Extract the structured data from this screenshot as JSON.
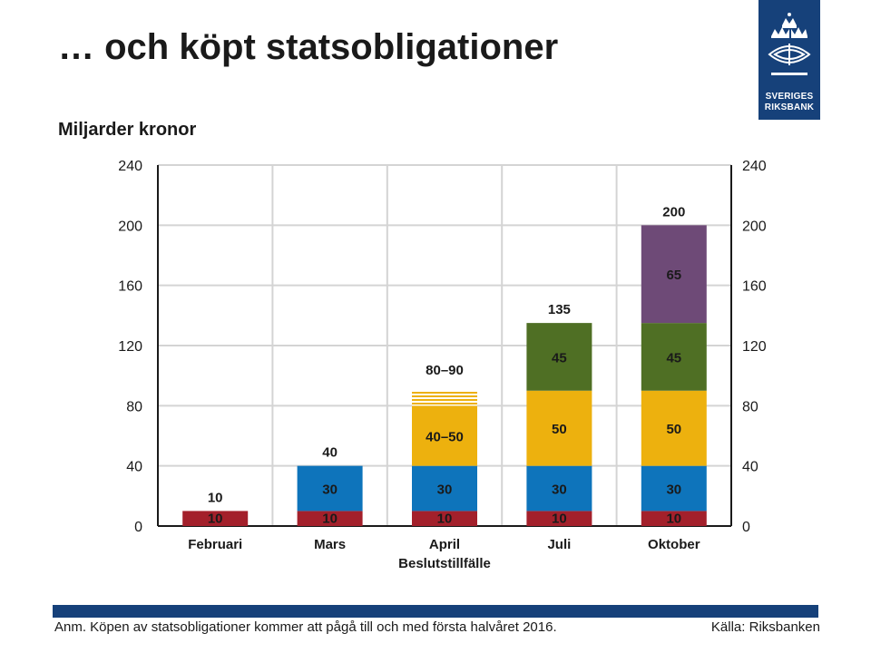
{
  "title": "… och köpt statsobligationer",
  "logo": {
    "line1": "SVERIGES",
    "line2": "RIKSBANK"
  },
  "footer": {
    "note": "Anm. Köpen av statsobligationer kommer att pågå till och med första halvåret 2016.",
    "source": "Källa: Riksbanken"
  },
  "colors": {
    "red": "#a3202b",
    "blue": "#0e74bb",
    "yellow": "#edb10e",
    "green": "#4f6f24",
    "purple": "#6e4a77",
    "grid": "#d4d4d4"
  },
  "chart_data": {
    "type": "bar",
    "stacked": true,
    "ylabel": "Miljarder kronor",
    "ylim": [
      0,
      240
    ],
    "yticks": [
      0,
      40,
      80,
      120,
      160,
      200,
      240
    ],
    "grid": true,
    "categories": [
      "Februari",
      "Mars",
      "April",
      "Juli",
      "Oktober"
    ],
    "category_sublabels": [
      "",
      "",
      "Beslutstillfälle",
      "",
      ""
    ],
    "segments": [
      [
        {
          "value": 10,
          "color": "red",
          "label": "10"
        }
      ],
      [
        {
          "value": 10,
          "color": "red",
          "label": "10"
        },
        {
          "value": 30,
          "color": "blue",
          "label": "30"
        }
      ],
      [
        {
          "value": 10,
          "color": "red",
          "label": "10"
        },
        {
          "value": 30,
          "color": "blue",
          "label": "30"
        },
        {
          "value": 40,
          "color": "yellow",
          "label": "40–50"
        },
        {
          "value": 10,
          "color": "yellow",
          "label": "",
          "style": "striped"
        }
      ],
      [
        {
          "value": 10,
          "color": "red",
          "label": "10"
        },
        {
          "value": 30,
          "color": "blue",
          "label": "30"
        },
        {
          "value": 50,
          "color": "yellow",
          "label": "50"
        },
        {
          "value": 45,
          "color": "green",
          "label": "45"
        }
      ],
      [
        {
          "value": 10,
          "color": "red",
          "label": "10"
        },
        {
          "value": 30,
          "color": "blue",
          "label": "30"
        },
        {
          "value": 50,
          "color": "yellow",
          "label": "50"
        },
        {
          "value": 45,
          "color": "green",
          "label": "45"
        },
        {
          "value": 65,
          "color": "purple",
          "label": "65"
        }
      ]
    ],
    "totals": [
      "10",
      "40",
      "80–90",
      "135",
      "200"
    ]
  }
}
